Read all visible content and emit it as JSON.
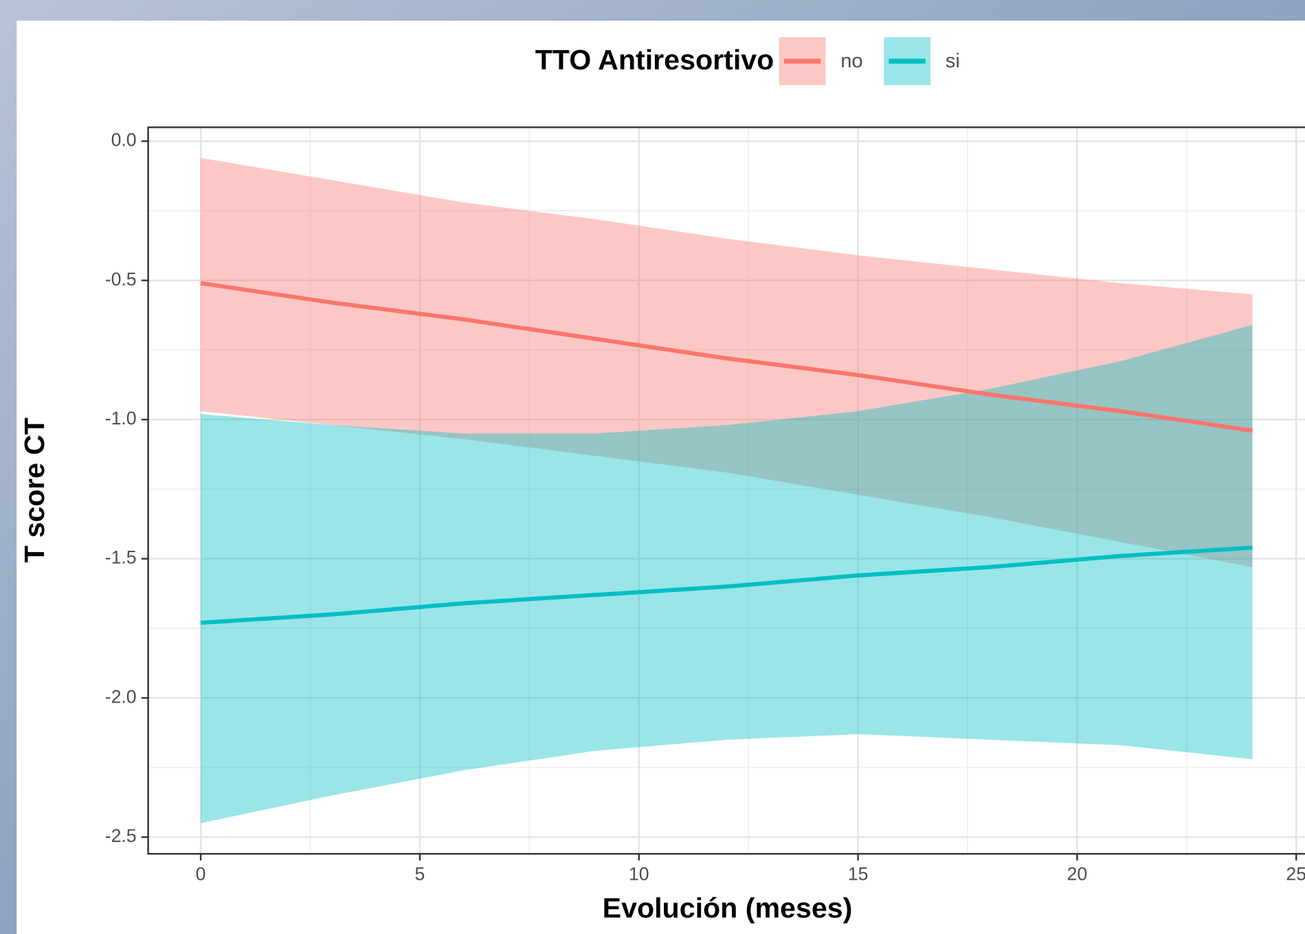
{
  "chart_data": {
    "type": "line",
    "legend_title": "TTO Antiresortivo",
    "x_label": "Evolución (meses)",
    "y_label": "T score CT",
    "x": [
      0,
      3,
      6,
      9,
      12,
      15,
      18,
      21,
      24
    ],
    "series": [
      {
        "name": "no",
        "color": "#F8766D",
        "values": [
          -0.51,
          -0.58,
          -0.64,
          -0.71,
          -0.78,
          -0.84,
          -0.91,
          -0.97,
          -1.04
        ],
        "upper": [
          -0.06,
          -0.14,
          -0.22,
          -0.28,
          -0.35,
          -0.41,
          -0.46,
          -0.51,
          -0.55
        ],
        "lower": [
          -0.97,
          -1.02,
          -1.07,
          -1.13,
          -1.19,
          -1.27,
          -1.35,
          -1.44,
          -1.53
        ]
      },
      {
        "name": "si",
        "color": "#00BFC4",
        "values": [
          -1.73,
          -1.7,
          -1.66,
          -1.63,
          -1.6,
          -1.56,
          -1.53,
          -1.49,
          -1.46
        ],
        "upper": [
          -0.98,
          -1.02,
          -1.05,
          -1.05,
          -1.02,
          -0.97,
          -0.89,
          -0.79,
          -0.66
        ],
        "lower": [
          -2.45,
          -2.35,
          -2.26,
          -2.19,
          -2.15,
          -2.13,
          -2.15,
          -2.17,
          -2.22
        ]
      }
    ],
    "xlim": [
      -1.2,
      25.2
    ],
    "ylim": [
      -2.56,
      0.05
    ],
    "xticks": [
      0,
      5,
      10,
      15,
      20,
      25
    ],
    "yticks": [
      {
        "value": 0,
        "label": "0.0"
      },
      {
        "value": -0.5,
        "label": "-0.5"
      },
      {
        "value": -1,
        "label": "-1.0"
      },
      {
        "value": -1.5,
        "label": "-1.5"
      },
      {
        "value": -2,
        "label": "-2.0"
      },
      {
        "value": -2.5,
        "label": "-2.5"
      }
    ],
    "grid": true,
    "legend_position": "top"
  }
}
